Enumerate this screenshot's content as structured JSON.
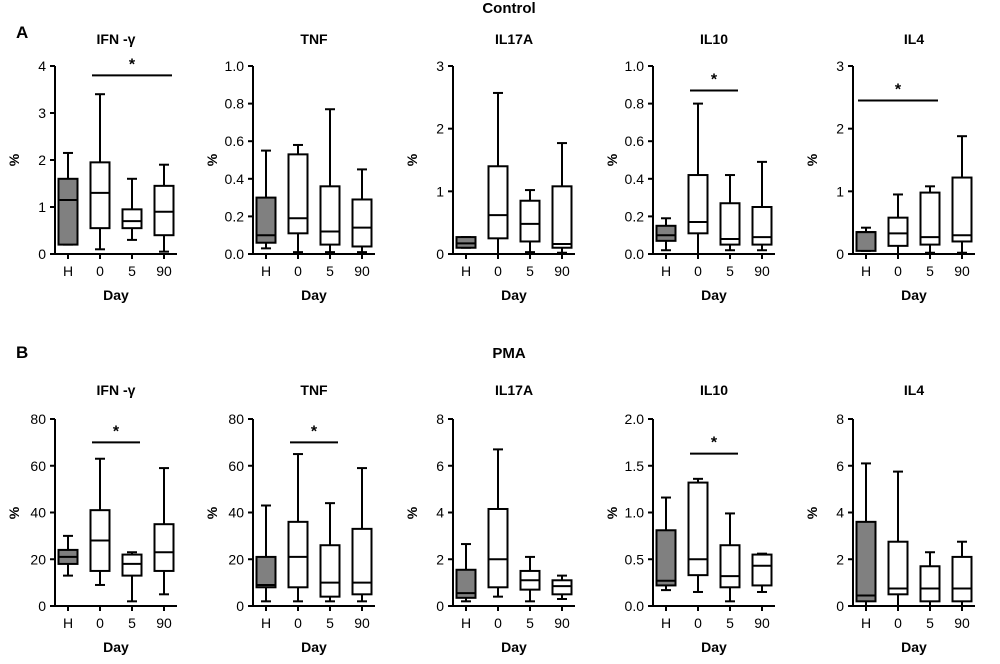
{
  "colors": {
    "healthy_fill": "#808080",
    "box_fill": "#ffffff",
    "stroke": "#000000"
  },
  "chart_data": [
    {
      "panel": "A",
      "condition": "Control",
      "type": "box",
      "xlabel": "Day",
      "ylabel": "%",
      "categories": [
        "H",
        "0",
        "5",
        "90"
      ],
      "plots": [
        {
          "title": "IFN -γ",
          "ylim": [
            0,
            4
          ],
          "yticks": [
            "0",
            "1",
            "2",
            "3",
            "4"
          ],
          "boxes": [
            {
              "whisker_low": 0.2,
              "q1": 0.2,
              "median": 1.15,
              "q3": 1.6,
              "whisker_high": 2.15
            },
            {
              "whisker_low": 0.1,
              "q1": 0.55,
              "median": 1.3,
              "q3": 1.95,
              "whisker_high": 3.4
            },
            {
              "whisker_low": 0.3,
              "q1": 0.55,
              "median": 0.7,
              "q3": 0.95,
              "whisker_high": 1.6
            },
            {
              "whisker_low": 0.05,
              "q1": 0.4,
              "median": 0.9,
              "q3": 1.45,
              "whisker_high": 1.9
            }
          ],
          "significance": [
            {
              "from": "0",
              "to": "90",
              "label": "*",
              "y": 3.8
            }
          ]
        },
        {
          "title": "TNF",
          "ylim": [
            0,
            1.0
          ],
          "yticks": [
            "0.0",
            "0.2",
            "0.4",
            "0.6",
            "0.8",
            "1.0"
          ],
          "boxes": [
            {
              "whisker_low": 0.03,
              "q1": 0.06,
              "median": 0.1,
              "q3": 0.3,
              "whisker_high": 0.55
            },
            {
              "whisker_low": 0.01,
              "q1": 0.11,
              "median": 0.19,
              "q3": 0.53,
              "whisker_high": 0.58
            },
            {
              "whisker_low": 0.01,
              "q1": 0.05,
              "median": 0.12,
              "q3": 0.36,
              "whisker_high": 0.77
            },
            {
              "whisker_low": 0.01,
              "q1": 0.04,
              "median": 0.14,
              "q3": 0.29,
              "whisker_high": 0.45
            }
          ],
          "significance": []
        },
        {
          "title": "IL17A",
          "ylim": [
            0,
            3
          ],
          "yticks": [
            "0",
            "1",
            "2",
            "3"
          ],
          "boxes": [
            {
              "whisker_low": 0.1,
              "q1": 0.1,
              "median": 0.17,
              "q3": 0.27,
              "whisker_high": 0.27
            },
            {
              "whisker_low": 0.0,
              "q1": 0.25,
              "median": 0.62,
              "q3": 1.4,
              "whisker_high": 2.57
            },
            {
              "whisker_low": 0.03,
              "q1": 0.2,
              "median": 0.48,
              "q3": 0.85,
              "whisker_high": 1.02
            },
            {
              "whisker_low": 0.02,
              "q1": 0.1,
              "median": 0.16,
              "q3": 1.08,
              "whisker_high": 1.77
            }
          ],
          "significance": []
        },
        {
          "title": "IL10",
          "ylim": [
            0,
            1.0
          ],
          "yticks": [
            "0.0",
            "0.2",
            "0.4",
            "0.6",
            "0.8",
            "1.0"
          ],
          "boxes": [
            {
              "whisker_low": 0.02,
              "q1": 0.07,
              "median": 0.1,
              "q3": 0.15,
              "whisker_high": 0.19
            },
            {
              "whisker_low": 0.0,
              "q1": 0.11,
              "median": 0.17,
              "q3": 0.42,
              "whisker_high": 0.8
            },
            {
              "whisker_low": 0.02,
              "q1": 0.05,
              "median": 0.08,
              "q3": 0.27,
              "whisker_high": 0.42
            },
            {
              "whisker_low": 0.02,
              "q1": 0.05,
              "median": 0.09,
              "q3": 0.25,
              "whisker_high": 0.49
            }
          ],
          "significance": [
            {
              "from": "0",
              "to": "5",
              "label": "*",
              "y": 0.87
            }
          ]
        },
        {
          "title": "IL4",
          "ylim": [
            0,
            3
          ],
          "yticks": [
            "0",
            "1",
            "2",
            "3"
          ],
          "boxes": [
            {
              "whisker_low": 0.05,
              "q1": 0.05,
              "median": 0.35,
              "q3": 0.35,
              "whisker_high": 0.42
            },
            {
              "whisker_low": 0.0,
              "q1": 0.13,
              "median": 0.33,
              "q3": 0.58,
              "whisker_high": 0.95
            },
            {
              "whisker_low": 0.02,
              "q1": 0.15,
              "median": 0.27,
              "q3": 0.98,
              "whisker_high": 1.08
            },
            {
              "whisker_low": 0.02,
              "q1": 0.2,
              "median": 0.3,
              "q3": 1.22,
              "whisker_high": 1.88
            }
          ],
          "significance": [
            {
              "from": "H",
              "to": "5",
              "label": "*",
              "y": 2.45
            }
          ]
        }
      ]
    },
    {
      "panel": "B",
      "condition": "PMA",
      "type": "box",
      "xlabel": "Day",
      "ylabel": "%",
      "categories": [
        "H",
        "0",
        "5",
        "90"
      ],
      "plots": [
        {
          "title": "IFN -γ",
          "ylim": [
            0,
            80
          ],
          "yticks": [
            "0",
            "20",
            "40",
            "60",
            "80"
          ],
          "boxes": [
            {
              "whisker_low": 13,
              "q1": 18,
              "median": 21,
              "q3": 24,
              "whisker_high": 30
            },
            {
              "whisker_low": 9,
              "q1": 15,
              "median": 28,
              "q3": 41,
              "whisker_high": 63
            },
            {
              "whisker_low": 2,
              "q1": 13,
              "median": 18,
              "q3": 22,
              "whisker_high": 23
            },
            {
              "whisker_low": 5,
              "q1": 15,
              "median": 23,
              "q3": 35,
              "whisker_high": 59
            }
          ],
          "significance": [
            {
              "from": "0",
              "to": "5",
              "label": "*",
              "y": 70
            }
          ]
        },
        {
          "title": "TNF",
          "ylim": [
            0,
            80
          ],
          "yticks": [
            "0",
            "20",
            "40",
            "60",
            "80"
          ],
          "boxes": [
            {
              "whisker_low": 2,
              "q1": 8,
              "median": 9,
              "q3": 21,
              "whisker_high": 43
            },
            {
              "whisker_low": 2,
              "q1": 8,
              "median": 21,
              "q3": 36,
              "whisker_high": 65
            },
            {
              "whisker_low": 2,
              "q1": 4,
              "median": 10,
              "q3": 26,
              "whisker_high": 44
            },
            {
              "whisker_low": 2,
              "q1": 5,
              "median": 10,
              "q3": 33,
              "whisker_high": 59
            }
          ],
          "significance": [
            {
              "from": "0",
              "to": "5",
              "label": "*",
              "y": 70
            }
          ]
        },
        {
          "title": "IL17A",
          "ylim": [
            0,
            8
          ],
          "yticks": [
            "0",
            "2",
            "4",
            "6",
            "8"
          ],
          "boxes": [
            {
              "whisker_low": 0.2,
              "q1": 0.35,
              "median": 0.55,
              "q3": 1.55,
              "whisker_high": 2.65
            },
            {
              "whisker_low": 0.4,
              "q1": 0.8,
              "median": 2.0,
              "q3": 4.15,
              "whisker_high": 6.7
            },
            {
              "whisker_low": 0.2,
              "q1": 0.7,
              "median": 1.1,
              "q3": 1.5,
              "whisker_high": 2.1
            },
            {
              "whisker_low": 0.3,
              "q1": 0.5,
              "median": 0.85,
              "q3": 1.1,
              "whisker_high": 1.3
            }
          ],
          "significance": []
        },
        {
          "title": "IL10",
          "ylim": [
            0,
            2.0
          ],
          "yticks": [
            "0.0",
            "0.5",
            "1.0",
            "1.5",
            "2.0"
          ],
          "boxes": [
            {
              "whisker_low": 0.17,
              "q1": 0.22,
              "median": 0.27,
              "q3": 0.81,
              "whisker_high": 1.16
            },
            {
              "whisker_low": 0.15,
              "q1": 0.33,
              "median": 0.5,
              "q3": 1.32,
              "whisker_high": 1.36
            },
            {
              "whisker_low": 0.05,
              "q1": 0.2,
              "median": 0.32,
              "q3": 0.65,
              "whisker_high": 0.99
            },
            {
              "whisker_low": 0.15,
              "q1": 0.22,
              "median": 0.43,
              "q3": 0.55,
              "whisker_high": 0.56
            }
          ],
          "significance": [
            {
              "from": "0",
              "to": "5",
              "label": "*",
              "y": 1.63
            }
          ]
        },
        {
          "title": "IL4",
          "ylim": [
            0,
            8
          ],
          "yticks": [
            "0",
            "2",
            "4",
            "6",
            "8"
          ],
          "boxes": [
            {
              "whisker_low": 0.0,
              "q1": 0.2,
              "median": 0.45,
              "q3": 3.6,
              "whisker_high": 6.1
            },
            {
              "whisker_low": 0.0,
              "q1": 0.5,
              "median": 0.75,
              "q3": 2.75,
              "whisker_high": 5.75
            },
            {
              "whisker_low": 0.0,
              "q1": 0.2,
              "median": 0.75,
              "q3": 1.7,
              "whisker_high": 2.3
            },
            {
              "whisker_low": 0.0,
              "q1": 0.2,
              "median": 0.75,
              "q3": 2.1,
              "whisker_high": 2.75
            }
          ],
          "significance": []
        }
      ]
    }
  ]
}
